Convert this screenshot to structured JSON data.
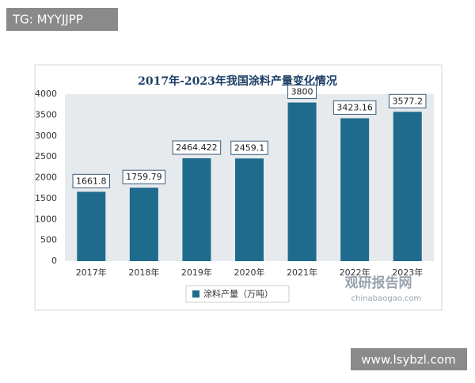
{
  "watermark_top": "TG: MYYJJPP",
  "watermark_bottom": "www.lsybzl.com",
  "source_logo": {
    "name": "观研报告网",
    "url": "chinabaogao.com"
  },
  "chart_data": {
    "type": "bar",
    "title": "2017年-2023年我国涂料产量变化情况",
    "categories": [
      "2017年",
      "2018年",
      "2019年",
      "2020年",
      "2021年",
      "2022年",
      "2023年"
    ],
    "series": [
      {
        "name": "涂料产量（万吨）",
        "color": "#1f6b8e",
        "values": [
          1661.8,
          1759.79,
          2464.422,
          2459.1,
          3800,
          3423.16,
          3577.2
        ]
      }
    ],
    "ylim": [
      0,
      4000
    ],
    "yticks": [
      0,
      500,
      1000,
      1500,
      2000,
      2500,
      3000,
      3500,
      4000
    ],
    "grid": false,
    "legend": "bottom"
  }
}
